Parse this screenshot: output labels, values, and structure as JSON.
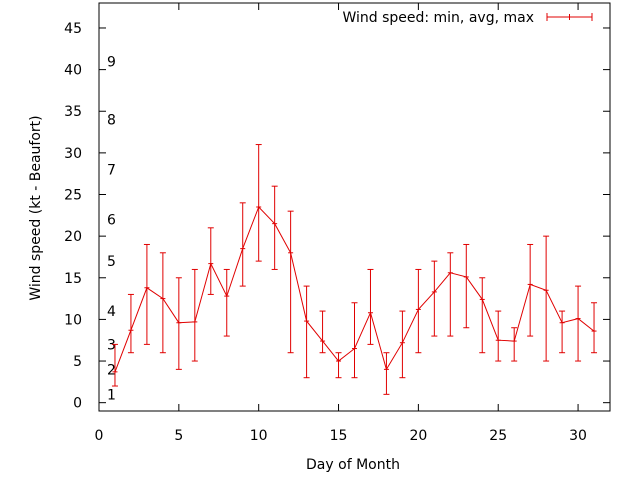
{
  "chart_data": {
    "type": "line",
    "xlabel": "Day of Month",
    "ylabel": "Wind speed (kt - Beaufort)",
    "xlim": [
      0,
      32
    ],
    "ylim": [
      -1,
      48
    ],
    "xticks": [
      0,
      5,
      10,
      15,
      20,
      25,
      30
    ],
    "yticks": [
      0,
      5,
      10,
      15,
      20,
      25,
      30,
      35,
      40,
      45
    ],
    "grid": false,
    "legend_position": "top-right",
    "beaufort_labels": [
      {
        "label": "1",
        "y": 1
      },
      {
        "label": "2",
        "y": 4
      },
      {
        "label": "3",
        "y": 7
      },
      {
        "label": "4",
        "y": 11
      },
      {
        "label": "5",
        "y": 17
      },
      {
        "label": "6",
        "y": 22
      },
      {
        "label": "7",
        "y": 28
      },
      {
        "label": "8",
        "y": 34
      },
      {
        "label": "9",
        "y": 41
      }
    ],
    "series": [
      {
        "name": "Wind speed: min, avg, max",
        "color": "#e00000",
        "x": [
          1,
          2,
          3,
          4,
          5,
          6,
          7,
          8,
          9,
          10,
          11,
          12,
          13,
          14,
          15,
          16,
          17,
          18,
          19,
          20,
          21,
          22,
          23,
          24,
          25,
          26,
          27,
          28,
          29,
          30,
          31
        ],
        "avg": [
          3.7,
          8.7,
          13.8,
          12.5,
          9.6,
          9.7,
          16.7,
          12.8,
          18.5,
          23.5,
          21.5,
          18.0,
          9.8,
          7.4,
          5.0,
          6.5,
          10.8,
          4.0,
          7.2,
          11.2,
          13.3,
          15.6,
          15.1,
          12.4,
          7.5,
          7.4,
          14.2,
          13.5,
          9.6,
          10.1,
          8.6
        ],
        "min": [
          2,
          6,
          7,
          6,
          4,
          5,
          13,
          8,
          14,
          17,
          16,
          6,
          3,
          6,
          3,
          3,
          7,
          1,
          3,
          6,
          8,
          8,
          9,
          6,
          5,
          5,
          8,
          5,
          6,
          5,
          6
        ],
        "max": [
          7,
          13,
          19,
          18,
          15,
          16,
          21,
          16,
          24,
          31,
          26,
          23,
          14,
          11,
          6,
          12,
          16,
          6,
          11,
          16,
          17,
          18,
          19,
          15,
          11,
          9,
          19,
          20,
          11,
          14,
          12
        ]
      }
    ]
  }
}
